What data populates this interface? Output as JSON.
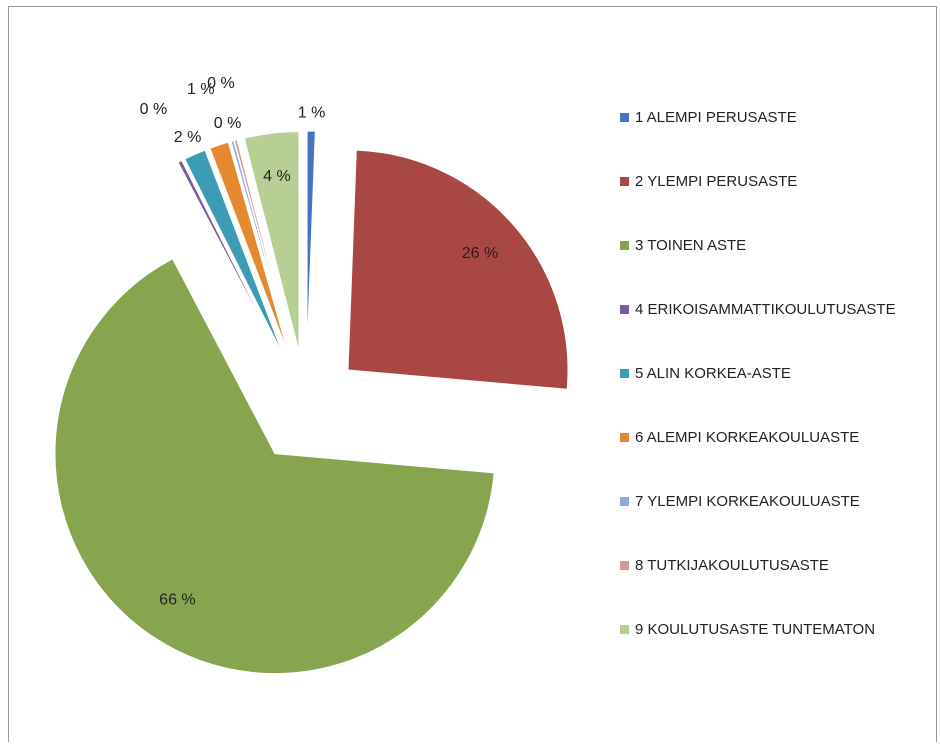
{
  "chart_data": {
    "type": "pie",
    "categories": [
      "1 ALEMPI PERUSASTE",
      "2 YLEMPI PERUSASTE",
      "3 TOINEN ASTE",
      "4 ERIKOISAMMATTIKOULUTUSASTE",
      "5 ALIN KORKEA-ASTE",
      "6 ALEMPI KORKEAKOULUASTE",
      "7 YLEMPI KORKEAKOULUASTE",
      "8 TUTKIJAKOULUTUSASTE",
      "9 KOULUTUSASTE TUNTEMATON"
    ],
    "values": [
      0.6,
      25.8,
      65.9,
      0.3,
      1.6,
      1.4,
      0.2,
      0.2,
      4.0
    ],
    "value_labels": [
      "1 %",
      "26 %",
      "66 %",
      "0 %",
      "2 %",
      "1 %",
      "0 %",
      "0 %",
      "4 %"
    ],
    "colors": [
      "#4472c4",
      "#a94744",
      "#87a54f",
      "#7a5c9e",
      "#3c9bb5",
      "#e4892f",
      "#8fa9d8",
      "#d99694",
      "#b7cf94"
    ],
    "legend": "right"
  }
}
